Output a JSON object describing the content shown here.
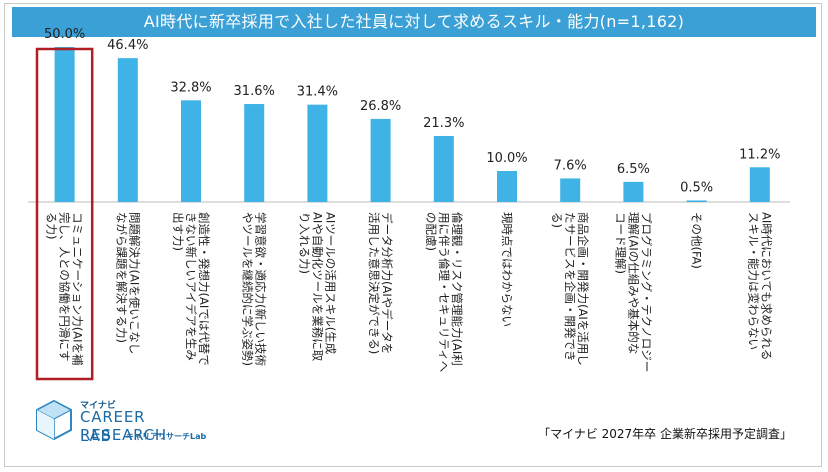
{
  "chart_data": {
    "type": "bar",
    "title": "AI時代に新卒採用で入社した社員に対して求めるスキル・能力(n=1,162)",
    "categories": [
      "コミュニケーション力(AIを補完し、人との協働を円滑にする力)",
      "問題解決力(AIを使いこなしながら課題を解決する力)",
      "創造性・発想力(AIでは代替できない新しいアイデアを生み出す力)",
      "学習意欲・適応力(新しい技術やツールを継続的に学ぶ姿勢)",
      "AIツールの活用スキル(生成AIや自動化ツールを業務に取り入れる力)",
      "データ分析力(AIやデータを活用した意思決定ができる)",
      "倫理観・リスク管理能力(AI利用に伴う倫理・セキュリティへの配慮)",
      "現時点ではわからない",
      "商品企画・開発力(AIを活用したサービスを企画・開発できる)",
      "プログラミング・テクノロジー理解(AIの仕組みや基本的なコード理解)",
      "その他(FA)",
      "AI時代においても求められるスキル・能力は変わらない"
    ],
    "label_lines": [
      [
        "コミュニケーション力(AIを補",
        "完し、人との協働を円滑にす",
        "る力)"
      ],
      [
        "問題解決力(AIを使いこなし",
        "ながら課題を解決する力)"
      ],
      [
        "創造性・発想力(AIでは代替で",
        "きない新しいアイデアを生み",
        "出す力)"
      ],
      [
        "学習意欲・適応力(新しい技術",
        "やツールを継続的に学ぶ姿勢)"
      ],
      [
        "AIツールの活用スキル(生成",
        "AIや自動化ツールを業務に取",
        "り入れる力)"
      ],
      [
        "データ分析力(AIやデータを",
        "活用した意思決定ができる)"
      ],
      [
        "倫理観・リスク管理能力(AI利",
        "用に伴う倫理・セキュリティへ",
        "の配慮)"
      ],
      [
        "現時点ではわからない"
      ],
      [
        "商品企画・開発力(AIを活用し",
        "たサービスを企画・開発でき",
        "る)"
      ],
      [
        "プログラミング・テクノロジー",
        "理解(AIの仕組みや基本的な",
        "コード理解)"
      ],
      [
        "その他(FA)"
      ],
      [
        "AI時代においても求められる",
        "スキル・能力は変わらない"
      ]
    ],
    "values": [
      50.0,
      46.4,
      32.8,
      31.6,
      31.4,
      26.8,
      21.3,
      10.0,
      7.6,
      6.5,
      0.5,
      11.2
    ],
    "value_labels": [
      "50.0%",
      "46.4%",
      "32.8%",
      "31.6%",
      "31.4%",
      "26.8%",
      "21.3%",
      "10.0%",
      "7.6%",
      "6.5%",
      "0.5%",
      "11.2%"
    ],
    "ylim": [
      0,
      50
    ],
    "highlight_index": 0,
    "bar_color": "#3fb2e6",
    "highlight_color": "#b01f24",
    "xlabel": "",
    "ylabel": ""
  },
  "logo": {
    "brand": "マイナビ",
    "line1": "CAREER RESEARCH",
    "line2": "LAB",
    "sub": "キャリアリサーチLab"
  },
  "source": "「マイナビ 2027年卒 企業新卒採用予定調査」"
}
